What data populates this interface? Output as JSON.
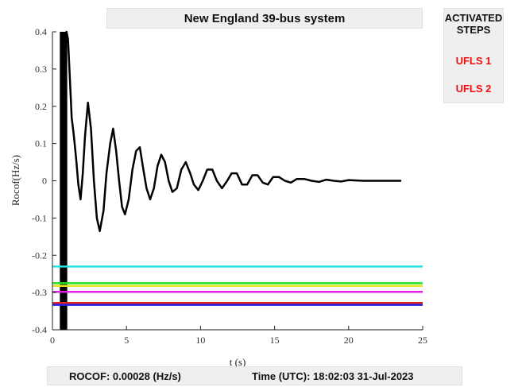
{
  "header": {
    "title": "New England 39-bus system"
  },
  "steps_panel": {
    "title_line1": "ACTIVATED",
    "title_line2": "STEPS",
    "steps": [
      "UFLS 1",
      "UFLS 2"
    ],
    "step_color": "#e11111"
  },
  "status": {
    "rocof_text": "ROCOF: 0.00028 (Hz/s)",
    "time_text": "Time (UTC): 18:02:03 31-Jul-2023"
  },
  "chart_data": {
    "type": "line",
    "xlabel": "t (s)",
    "ylabel": "Rocof(Hz/s)",
    "xlim": [
      0,
      25
    ],
    "ylim": [
      -0.4,
      0.4
    ],
    "xticks": [
      0,
      5,
      10,
      15,
      20,
      25
    ],
    "yticks": [
      -0.4,
      -0.3,
      -0.2,
      -0.1,
      0,
      0.1,
      0.2,
      0.3,
      0.4
    ],
    "grid": false,
    "band": {
      "x_start": 0.5,
      "x_end": 1.0,
      "color": "#000000"
    },
    "series": [
      {
        "color": "#000000",
        "x": [
          0.95,
          1.05,
          1.15,
          1.3,
          1.45,
          1.6,
          1.75,
          1.9,
          2.05,
          2.2,
          2.4,
          2.6,
          2.8,
          3.0,
          3.2,
          3.45,
          3.65,
          3.9,
          4.1,
          4.3,
          4.5,
          4.7,
          4.9,
          5.15,
          5.4,
          5.65,
          5.9,
          6.1,
          6.35,
          6.6,
          6.85,
          7.1,
          7.35,
          7.6,
          7.85,
          8.1,
          8.4,
          8.7,
          9.0,
          9.3,
          9.55,
          9.85,
          10.15,
          10.45,
          10.8,
          11.1,
          11.45,
          11.8,
          12.1,
          12.45,
          12.8,
          13.15,
          13.5,
          13.85,
          14.2,
          14.55,
          14.9,
          15.3,
          15.7,
          16.1,
          16.5,
          17.0,
          17.5,
          18.0,
          18.5,
          19.0,
          19.5,
          20.0,
          21.0,
          22.0,
          23.5
        ],
        "y": [
          0.4,
          0.38,
          0.3,
          0.17,
          0.12,
          0.06,
          -0.01,
          -0.05,
          0.02,
          0.12,
          0.21,
          0.14,
          0.0,
          -0.1,
          -0.135,
          -0.08,
          0.02,
          0.1,
          0.14,
          0.08,
          0.0,
          -0.07,
          -0.09,
          -0.05,
          0.03,
          0.08,
          0.09,
          0.04,
          -0.02,
          -0.05,
          -0.02,
          0.04,
          0.07,
          0.05,
          0.0,
          -0.03,
          -0.02,
          0.03,
          0.05,
          0.02,
          -0.01,
          -0.025,
          0.0,
          0.03,
          0.03,
          0.0,
          -0.02,
          0.0,
          0.02,
          0.02,
          -0.01,
          -0.01,
          0.015,
          0.015,
          -0.005,
          -0.01,
          0.01,
          0.01,
          0.0,
          -0.005,
          0.005,
          0.005,
          0.0,
          -0.003,
          0.003,
          0.0,
          -0.002,
          0.002,
          0.0,
          0.0,
          0.0
        ]
      }
    ],
    "thresholds": [
      {
        "y": -0.23,
        "color": "#22e5e5"
      },
      {
        "y": -0.275,
        "color": "#22e522"
      },
      {
        "y": -0.282,
        "color": "#e5e522"
      },
      {
        "y": -0.298,
        "color": "#e522e5"
      },
      {
        "y": -0.328,
        "color": "#e52222"
      },
      {
        "y": -0.333,
        "color": "#2222e5"
      }
    ]
  }
}
